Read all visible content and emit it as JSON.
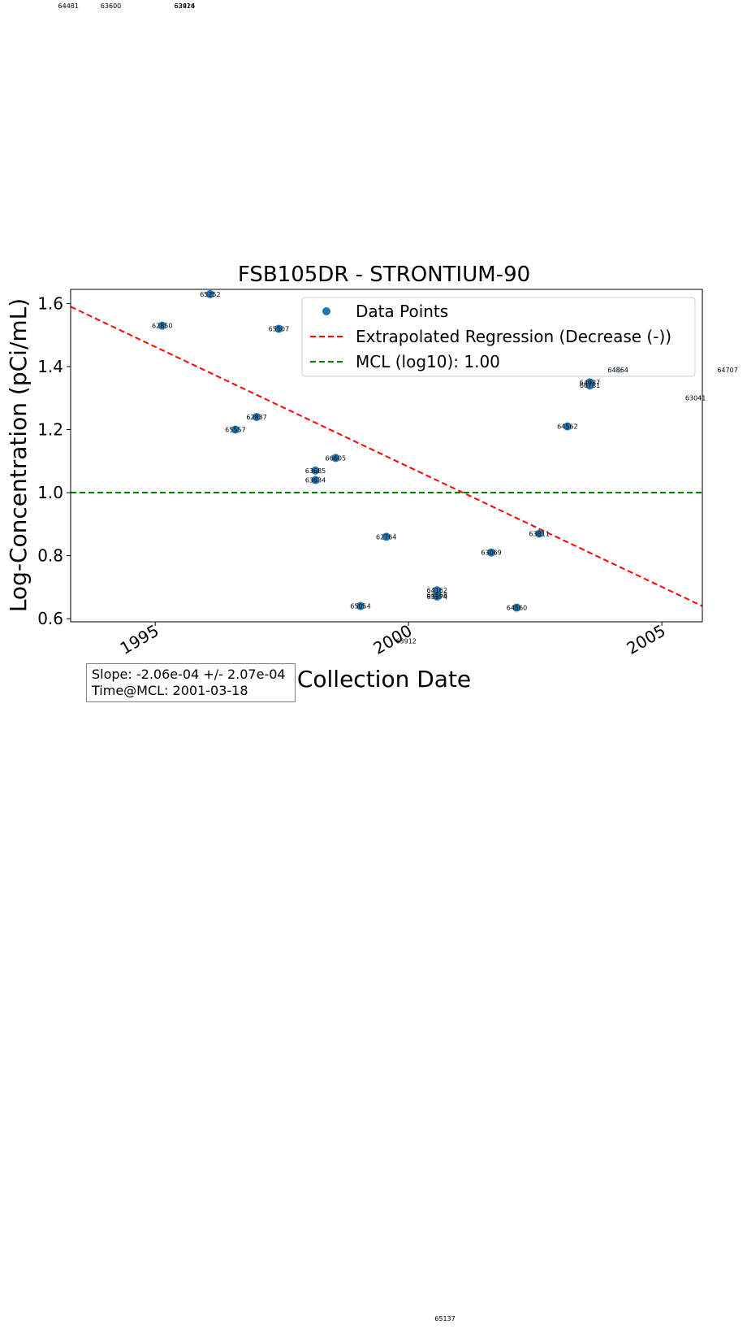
{
  "chart_data": {
    "type": "scatter",
    "title": "FSB105DR - STRONTIUM-90",
    "xlabel": "Collection Date",
    "ylabel": "Log-Concentration (pCi/mL)",
    "xlim": [
      "1993-05-01",
      "2005-10-20"
    ],
    "ylim": [
      0.59,
      1.645
    ],
    "x_ticks": [
      "1995",
      "2000",
      "2005"
    ],
    "x_tick_dates": [
      "1995-01-01",
      "2000-01-01",
      "2005-01-01"
    ],
    "y_ticks": [
      "0.6",
      "0.8",
      "1.0",
      "1.2",
      "1.4",
      "1.6"
    ],
    "y_tick_values": [
      0.6,
      0.8,
      1.0,
      1.2,
      1.4,
      1.6
    ],
    "grid": false,
    "legend_position": "upper right",
    "colors": {
      "points": "#1f77b4",
      "regression": "#ff0000",
      "mcl": "#008000",
      "frame": "#000000"
    },
    "series": [
      {
        "name": "Data Points",
        "kind": "scatter",
        "points": [
          {
            "date": "1995-02-20",
            "y": 1.53,
            "label": "62850"
          },
          {
            "date": "1996-02-01",
            "y": 1.63,
            "label": "65252"
          },
          {
            "date": "1996-08-01",
            "y": 1.2,
            "label": "65557"
          },
          {
            "date": "1997-01-01",
            "y": 1.24,
            "label": "62837"
          },
          {
            "date": "1997-06-10",
            "y": 1.52,
            "label": "65507"
          },
          {
            "date": "1998-03-01",
            "y": 1.07,
            "label": "63685"
          },
          {
            "date": "1998-03-01",
            "y": 1.04,
            "label": "63634"
          },
          {
            "date": "1998-07-25",
            "y": 1.11,
            "label": "66605"
          },
          {
            "date": "1999-01-20",
            "y": 0.64,
            "label": "65054"
          },
          {
            "date": "1999-07-25",
            "y": 0.86,
            "label": "62764"
          },
          {
            "date": "2000-07-25",
            "y": 0.69,
            "label": "64162"
          },
          {
            "date": "2000-07-25",
            "y": 0.675,
            "label": "63568"
          },
          {
            "date": "2000-07-25",
            "y": 0.67,
            "label": "65574"
          },
          {
            "date": "2001-08-20",
            "y": 0.81,
            "label": "63069"
          },
          {
            "date": "2002-02-20",
            "y": 0.635,
            "label": "64560"
          },
          {
            "date": "2002-08-01",
            "y": 0.87,
            "label": "63811"
          },
          {
            "date": "2003-02-20",
            "y": 1.21,
            "label": "64562"
          },
          {
            "date": "2003-08-01",
            "y": 1.35,
            "label": "64987"
          },
          {
            "date": "2003-08-01",
            "y": 1.34,
            "label": "66781"
          },
          {
            "date": "2004-02-20",
            "y": 1.39,
            "label": "64864"
          }
        ]
      },
      {
        "name": "Extrapolated Regression (Decrease (-))",
        "kind": "line",
        "style": "dashed",
        "points": [
          {
            "date": "1993-05-01",
            "y": 1.59
          },
          {
            "date": "2005-10-20",
            "y": 0.64
          }
        ]
      },
      {
        "name": "MCL (log10): 1.00",
        "kind": "hline",
        "style": "dashed",
        "y": 1.0
      }
    ],
    "outside_labels": [
      {
        "date": "1993-04-15",
        "y": 5.56,
        "label": "64481"
      },
      {
        "date": "1994-02-15",
        "y": 4.135,
        "label": "63600"
      },
      {
        "date": "1995-08-01",
        "y": 3.3,
        "label": "62916"
      },
      {
        "date": "1995-08-01",
        "y": 3.06,
        "label": "63424"
      },
      {
        "date": "1999-12-15",
        "y": 0.53,
        "label": "63912"
      },
      {
        "date": "2006-04-20",
        "y": 1.39,
        "label": "64707"
      },
      {
        "date": "2005-09-01",
        "y": 1.3,
        "label": "63041"
      },
      {
        "date": "2000-09-20",
        "y": -6.95,
        "label": "65137"
      }
    ],
    "stats": {
      "slope_text": "Slope: -2.06e-04 +/- 2.07e-04",
      "mcl_time_text": "Time@MCL: 2001-03-18"
    }
  }
}
